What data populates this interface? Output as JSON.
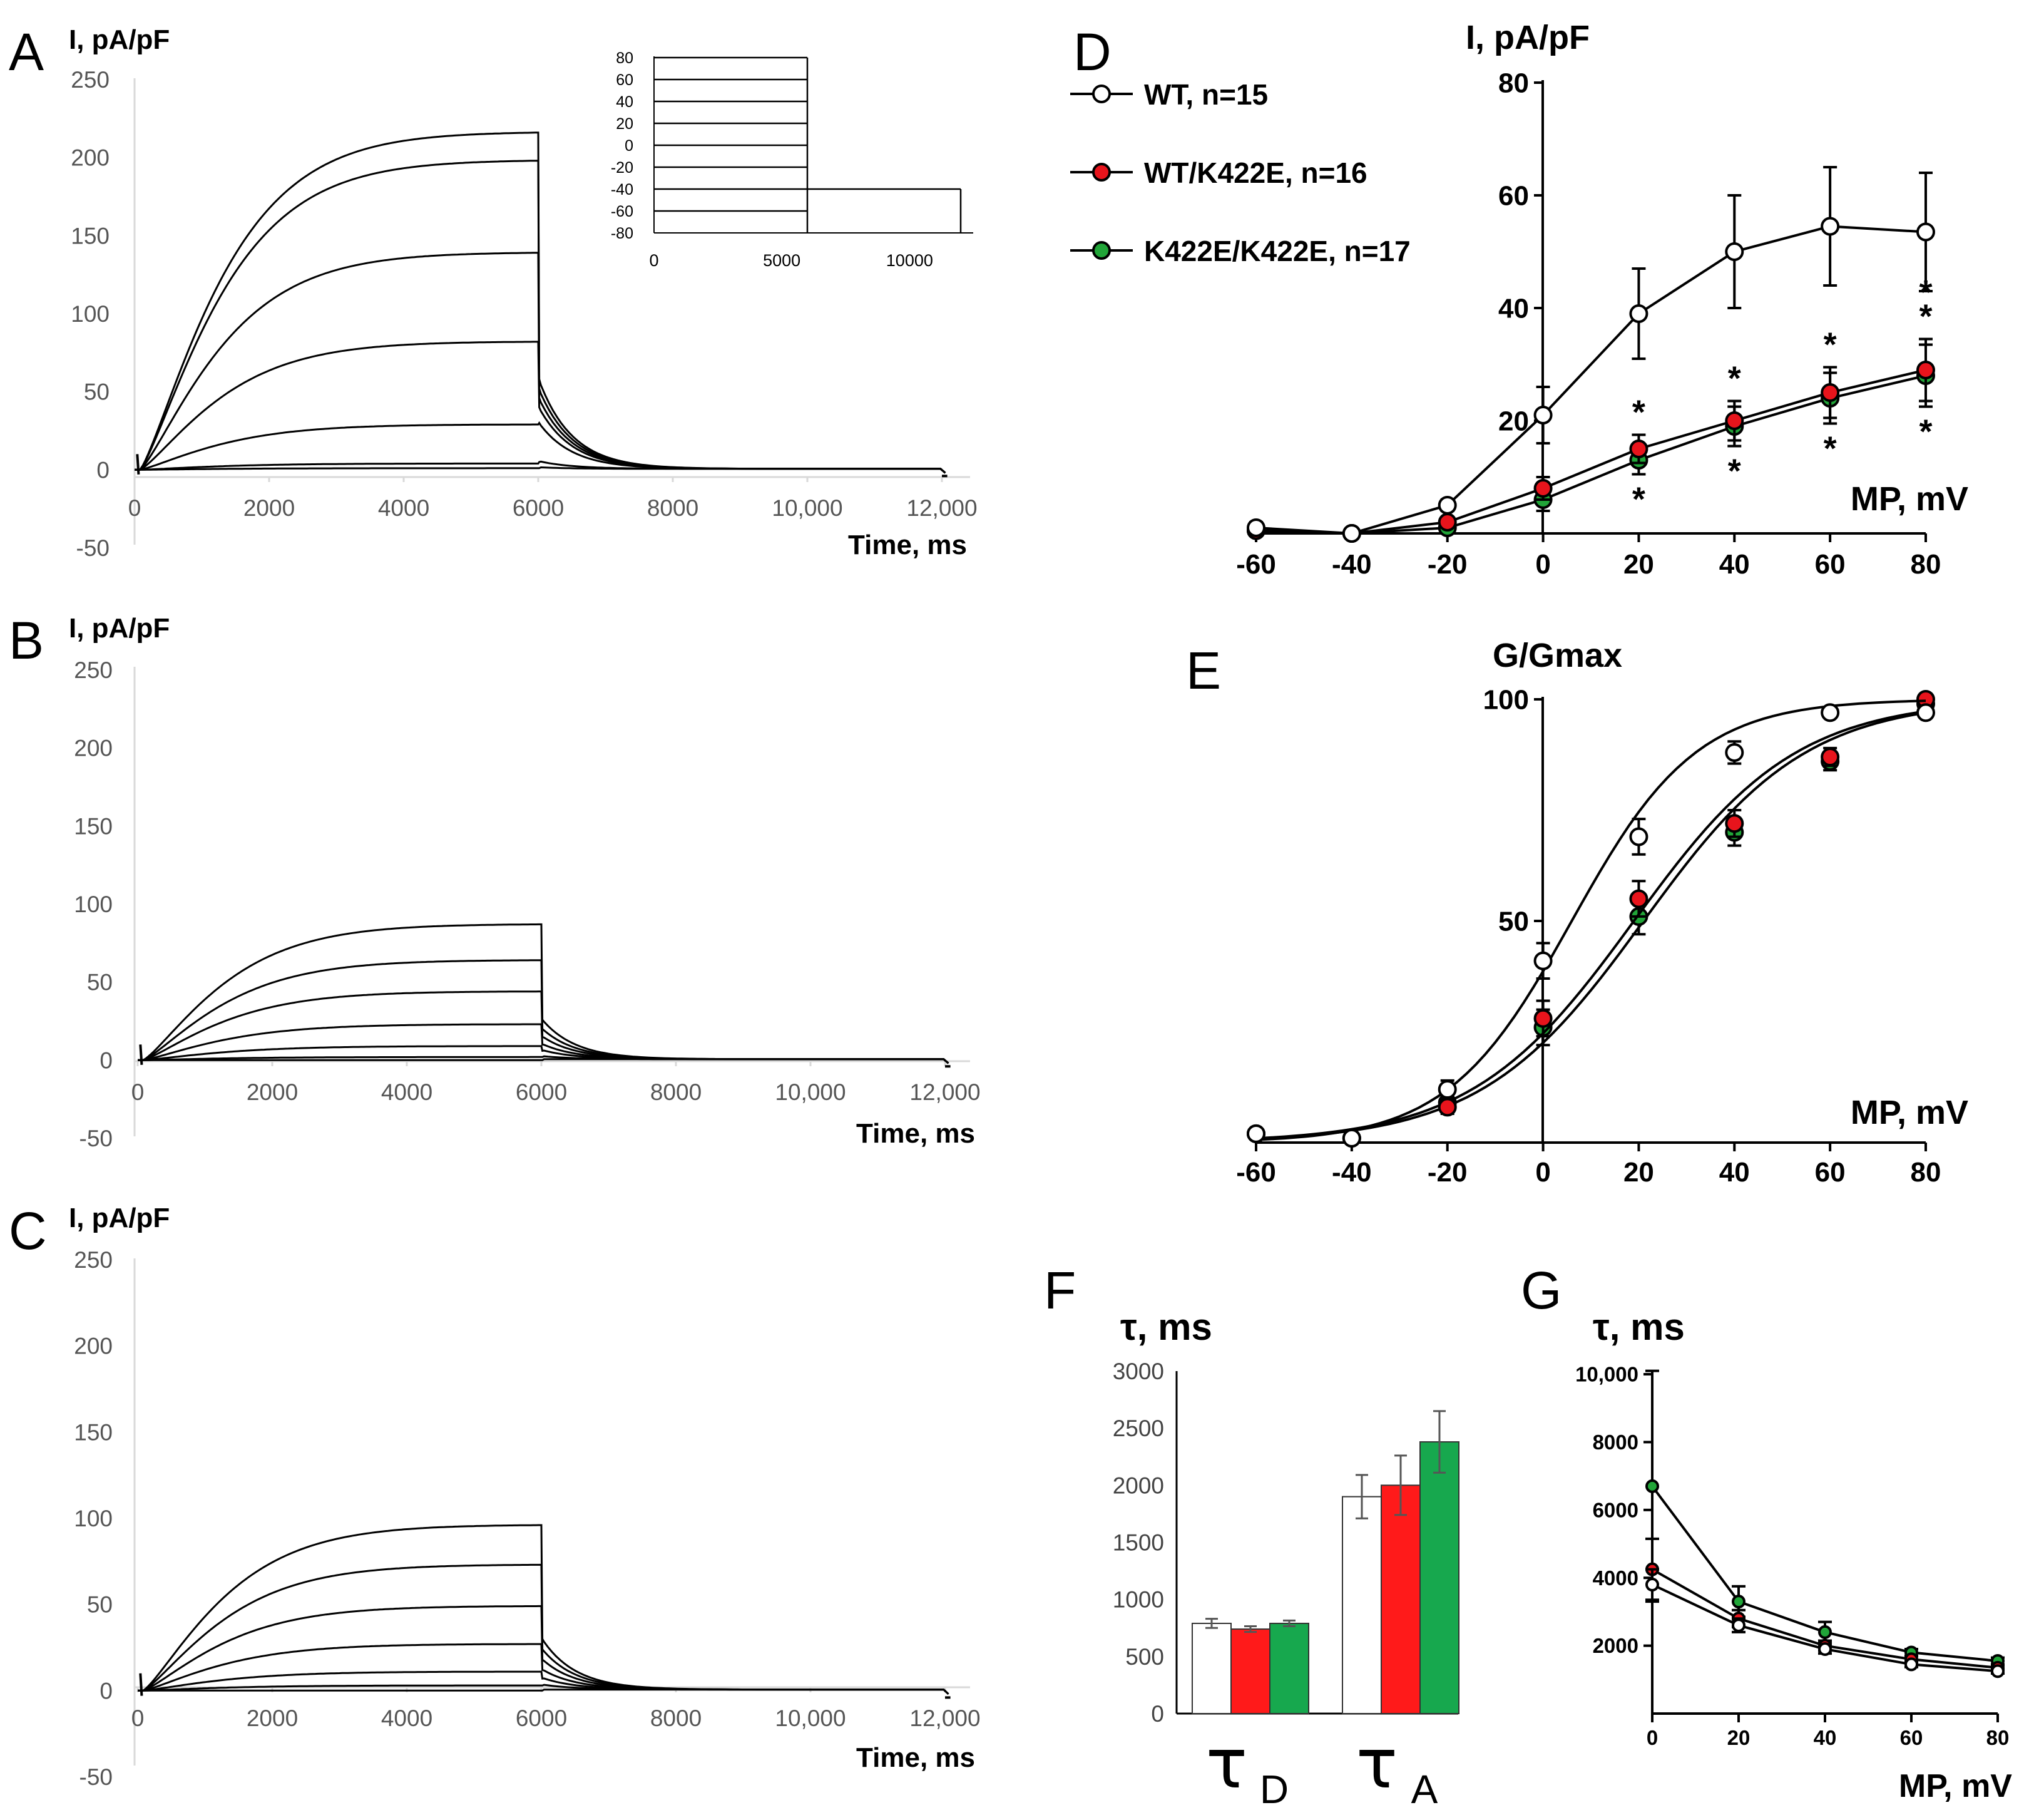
{
  "figure": {
    "panel_letters": [
      "A",
      "B",
      "C",
      "D",
      "E",
      "F",
      "G"
    ]
  },
  "chart_data": [
    {
      "panel": "A",
      "type": "line",
      "ylabel": "I, pA/pF",
      "xlabel": "Time, ms",
      "x_ticks": [
        "0",
        "2000",
        "4000",
        "6000",
        "8000",
        "10,000",
        "12,000"
      ],
      "y_ticks": [
        "250",
        "200",
        "150",
        "100",
        "50",
        "0",
        "-50"
      ],
      "xlim": [
        0,
        12000
      ],
      "ylim": [
        -50,
        250
      ],
      "pulse_end_ms": 6000,
      "traces_peak_pA_pF": [
        216,
        198,
        139,
        82,
        29,
        4,
        1
      ],
      "tail_start_pA_pF": [
        58,
        52,
        46,
        40,
        30,
        5,
        1
      ],
      "inset": {
        "description": "voltage protocol",
        "y_ticks": [
          "80",
          "60",
          "40",
          "20",
          "0",
          "-20",
          "-40",
          "-60",
          "-80"
        ],
        "x_ticks": [
          "0",
          "5000",
          "10000"
        ],
        "steps_mV": [
          -60,
          -40,
          -20,
          0,
          20,
          40,
          60,
          80
        ],
        "holding_mV": -80,
        "tail_mV": -40,
        "step_duration_ms": 6000,
        "tail_end_ms": 12000
      }
    },
    {
      "panel": "B",
      "type": "line",
      "ylabel": "I, pA/pF",
      "xlabel": "Time, ms",
      "x_ticks": [
        "0",
        "2000",
        "4000",
        "6000",
        "8000",
        "10,000",
        "12,000"
      ],
      "y_ticks": [
        "250",
        "200",
        "150",
        "100",
        "50",
        "0",
        "-50"
      ],
      "xlim": [
        0,
        12000
      ],
      "ylim": [
        -50,
        250
      ],
      "pulse_end_ms": 6000,
      "traces_peak_pA_pF": [
        87,
        64,
        44,
        23,
        9,
        2,
        0
      ],
      "tail_start_pA_pF": [
        26,
        20,
        15,
        10,
        6,
        2,
        0
      ]
    },
    {
      "panel": "C",
      "type": "line",
      "ylabel": "I, pA/pF",
      "xlabel": "Time, ms",
      "x_ticks": [
        "0",
        "2000",
        "4000",
        "6000",
        "8000",
        "10,000",
        "12,000"
      ],
      "y_ticks": [
        "250",
        "200",
        "150",
        "100",
        "50",
        "0",
        "-50"
      ],
      "xlim": [
        0,
        12000
      ],
      "ylim": [
        -50,
        250
      ],
      "pulse_end_ms": 6000,
      "traces_peak_pA_pF": [
        96,
        73,
        49,
        27,
        11,
        3,
        0
      ],
      "tail_start_pA_pF": [
        30,
        24,
        18,
        12,
        7,
        3,
        0
      ]
    },
    {
      "panel": "D",
      "type": "line",
      "ylabel": "I, pA/pF",
      "xlabel": "MP, mV",
      "x_ticks": [
        "-60",
        "-40",
        "-20",
        "0",
        "20",
        "40",
        "60",
        "80"
      ],
      "y_ticks": [
        "80",
        "60",
        "40",
        "20"
      ],
      "xlim": [
        -60,
        80
      ],
      "ylim": [
        0,
        80
      ],
      "x": [
        -60,
        -40,
        -20,
        0,
        20,
        40,
        60,
        80
      ],
      "series": [
        {
          "name": "WT, n=15",
          "color": "#ffffff",
          "values": [
            1,
            0,
            5,
            21,
            39,
            50,
            54.5,
            53.5
          ],
          "errors": [
            1,
            0.5,
            1,
            5,
            8,
            10,
            10.5,
            10.5
          ]
        },
        {
          "name": "WT/K422E, n=16",
          "color": "#e8141c",
          "values": [
            0.5,
            0,
            2,
            8,
            15,
            20,
            25,
            29
          ],
          "errors": [
            0.5,
            0.5,
            0.8,
            2,
            2.5,
            3.5,
            4.5,
            5.5
          ]
        },
        {
          "name": "K422E/K422E, n=17",
          "color": "#21a538",
          "values": [
            0.5,
            0,
            1,
            6,
            13,
            19,
            24,
            28
          ],
          "errors": [
            0.5,
            0.5,
            0.8,
            2,
            2.5,
            3.5,
            4.5,
            5.5
          ]
        }
      ],
      "significance": {
        "symbol": "*",
        "x_positions": [
          20,
          40,
          60,
          80
        ]
      }
    },
    {
      "panel": "E",
      "type": "line",
      "ylabel": "G/Gmax",
      "xlabel": "MP, mV",
      "x_ticks": [
        "-60",
        "-40",
        "-20",
        "0",
        "20",
        "40",
        "60",
        "80"
      ],
      "y_ticks": [
        "100",
        "50"
      ],
      "xlim": [
        -60,
        80
      ],
      "ylim": [
        0,
        100
      ],
      "x": [
        -60,
        -40,
        -20,
        0,
        20,
        40,
        60,
        80
      ],
      "series": [
        {
          "name": "WT",
          "color": "#ffffff",
          "values": [
            2,
            1,
            12,
            41,
            69,
            88,
            97,
            97
          ],
          "errors": [
            0.5,
            0.5,
            2,
            4,
            4,
            2.5,
            0.5,
            1
          ]
        },
        {
          "name": "WT/K422E",
          "color": "#e8141c",
          "values": [
            2,
            1,
            8,
            28,
            55,
            72,
            87,
            100
          ],
          "errors": [
            0.5,
            0.5,
            1.5,
            4,
            4,
            3,
            2,
            0.5
          ]
        },
        {
          "name": "K422E/K422E",
          "color": "#21a538",
          "values": [
            2,
            1,
            9,
            26,
            51,
            70,
            86,
            99
          ],
          "errors": [
            0.5,
            0.5,
            1.5,
            4,
            4,
            3,
            2,
            0.5
          ]
        }
      ]
    },
    {
      "panel": "F",
      "type": "bar",
      "ylabel": "τ, ms",
      "categories": [
        "τD",
        "τA"
      ],
      "category_labels": [
        {
          "main": "τ",
          "sub": "D"
        },
        {
          "main": "τ",
          "sub": "A"
        }
      ],
      "y_ticks": [
        "3000",
        "2500",
        "2000",
        "1500",
        "1000",
        "500",
        "0"
      ],
      "ylim": [
        0,
        3000
      ],
      "series": [
        {
          "name": "WT",
          "color": "#ffffff",
          "values": [
            790,
            1900
          ],
          "errors": [
            40,
            190
          ]
        },
        {
          "name": "WT/K422E",
          "color": "#ff1a1a",
          "values": [
            740,
            2000
          ],
          "errors": [
            25,
            260
          ]
        },
        {
          "name": "K422E/K422E",
          "color": "#17a84e",
          "values": [
            790,
            2380
          ],
          "errors": [
            25,
            270
          ]
        }
      ]
    },
    {
      "panel": "G",
      "type": "line",
      "ylabel": "τ, ms",
      "xlabel": "MP, mV",
      "x_ticks": [
        "0",
        "20",
        "40",
        "60",
        "80"
      ],
      "y_ticks": [
        "10,000",
        "8000",
        "6000",
        "4000",
        "2000"
      ],
      "xlim": [
        0,
        80
      ],
      "ylim": [
        0,
        10000
      ],
      "x": [
        0,
        20,
        40,
        60,
        80
      ],
      "series": [
        {
          "name": "WT",
          "color": "#ffffff",
          "values": [
            3800,
            2600,
            1900,
            1450,
            1250
          ],
          "errors": [
            450,
            200,
            130,
            80,
            70
          ]
        },
        {
          "name": "WT/K422E",
          "color": "#e8141c",
          "values": [
            4250,
            2800,
            2000,
            1600,
            1350
          ],
          "errors": [
            900,
            250,
            150,
            90,
            70
          ]
        },
        {
          "name": "K422E/K422E",
          "color": "#21a538",
          "values": [
            6700,
            3300,
            2400,
            1800,
            1550
          ],
          "errors": [
            3400,
            450,
            300,
            100,
            100
          ]
        }
      ]
    }
  ]
}
